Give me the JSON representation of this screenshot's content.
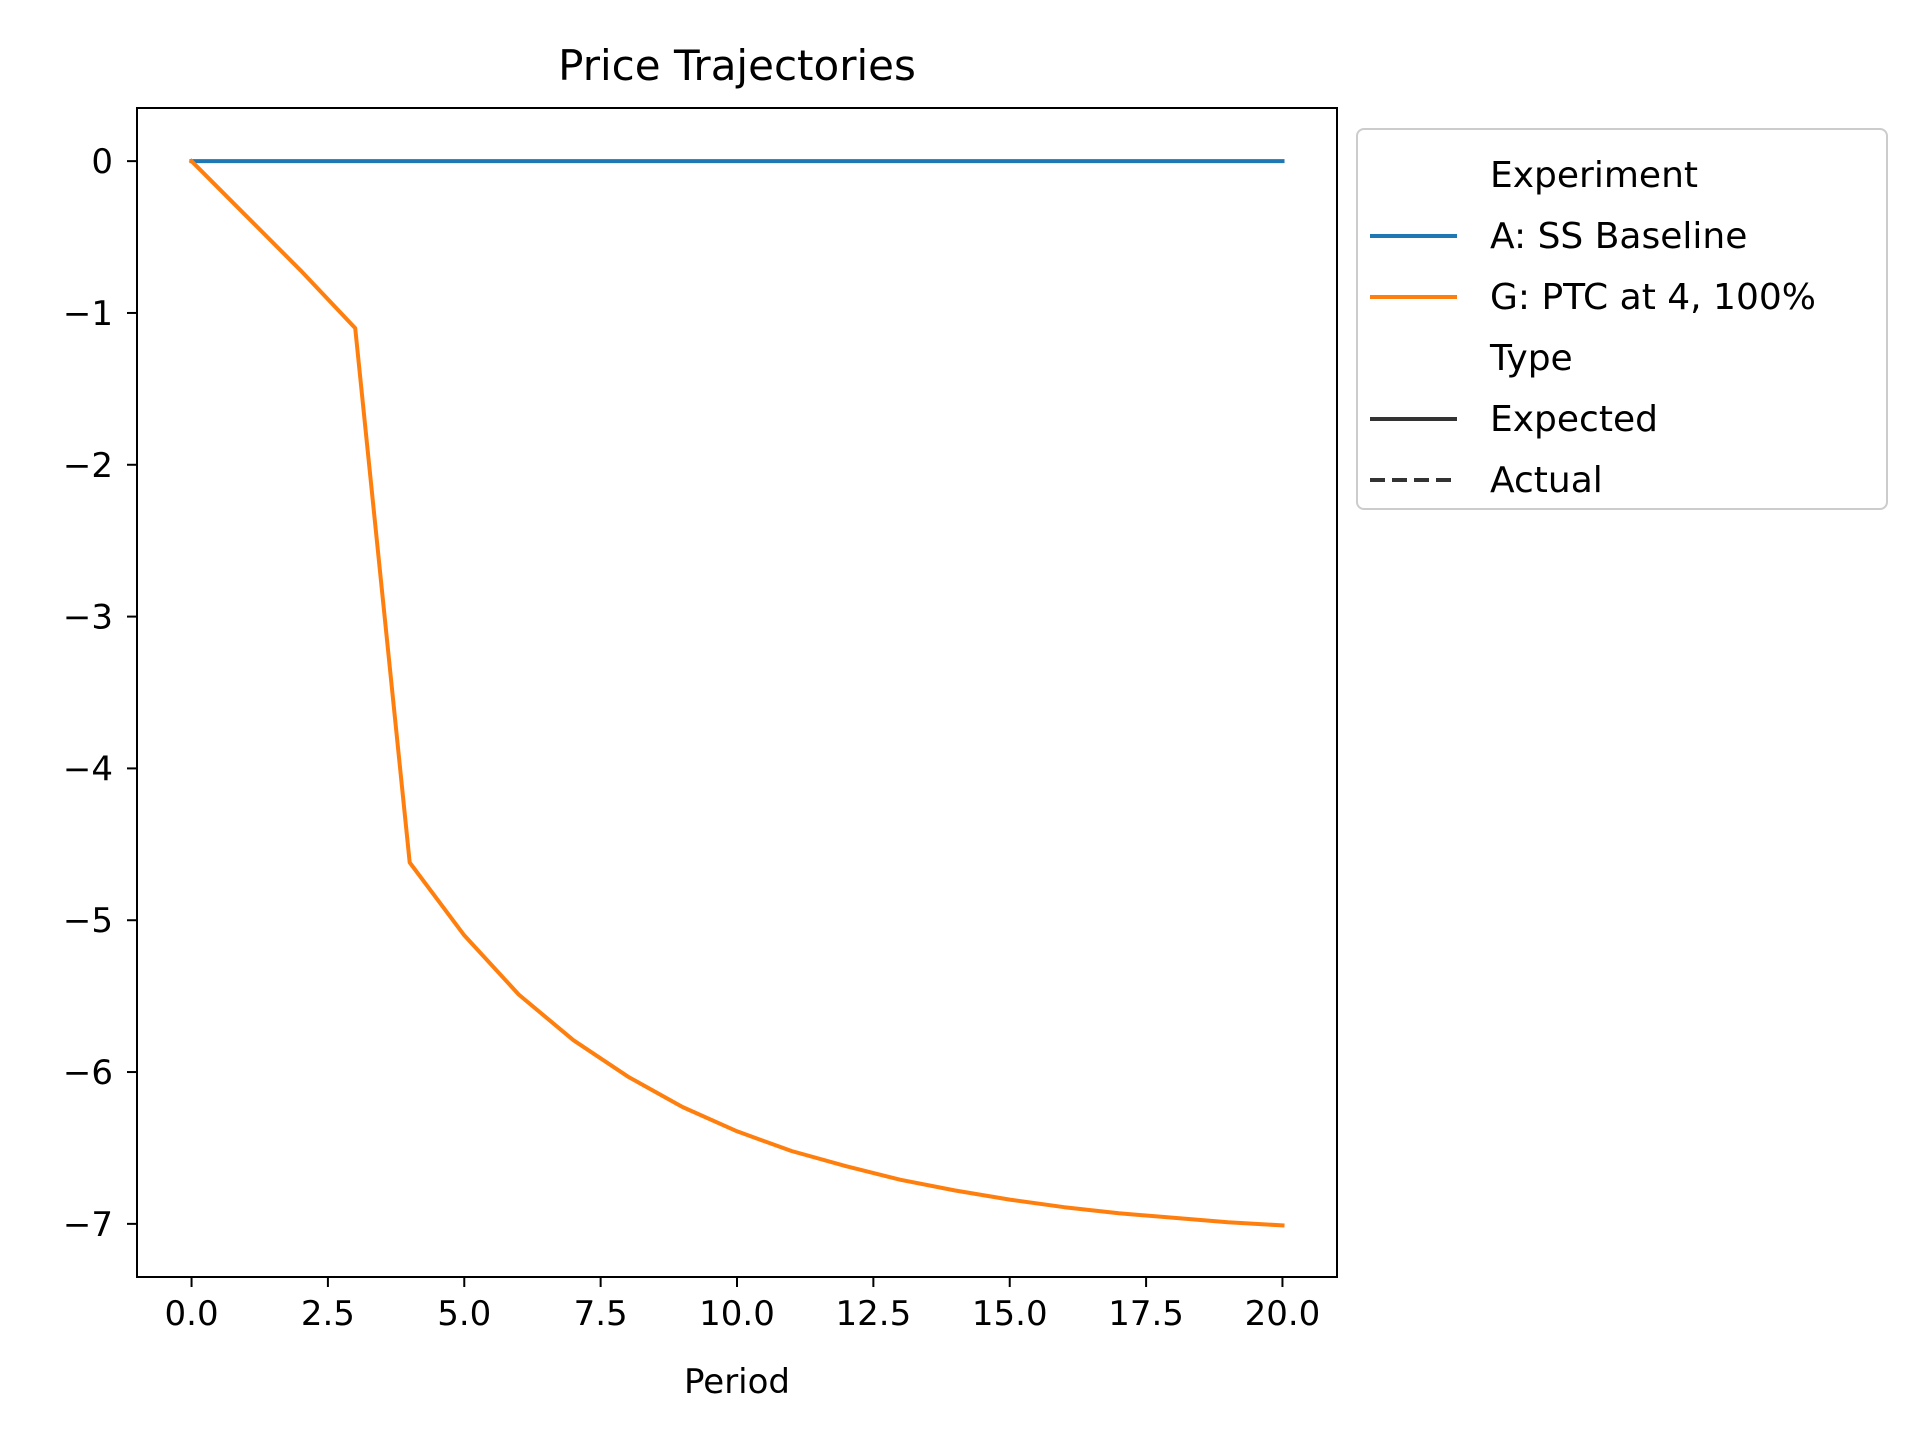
{
  "chart_data": {
    "type": "line",
    "title": "Price Trajectories",
    "xlabel": "Period",
    "ylabel": "",
    "xlim": [
      -1,
      21
    ],
    "ylim": [
      -7.35,
      0.35
    ],
    "xticks": [
      0,
      2.5,
      5,
      7.5,
      10,
      12.5,
      15,
      17.5,
      20
    ],
    "xtick_labels": [
      "0.0",
      "2.5",
      "5.0",
      "7.5",
      "10.0",
      "12.5",
      "15.0",
      "17.5",
      "20.0"
    ],
    "yticks": [
      0,
      -1,
      -2,
      -3,
      -4,
      -5,
      -6,
      -7
    ],
    "ytick_labels": [
      "0",
      "−1",
      "−2",
      "−3",
      "−4",
      "−5",
      "−6",
      "−7"
    ],
    "grid": false,
    "legend": {
      "placement": "outside-upper-right",
      "sections": [
        {
          "title": "Experiment",
          "entries": [
            {
              "label": "A: SS Baseline",
              "color": "#1f77b4",
              "style": "solid"
            },
            {
              "label": "G: PTC at 4, 100%",
              "color": "#ff7f0e",
              "style": "solid"
            }
          ]
        },
        {
          "title": "Type",
          "entries": [
            {
              "label": "Expected",
              "color": "#333333",
              "style": "solid"
            },
            {
              "label": "Actual",
              "color": "#333333",
              "style": "dashed"
            }
          ]
        }
      ]
    },
    "x": [
      0,
      1,
      2,
      3,
      4,
      5,
      6,
      7,
      8,
      9,
      10,
      11,
      12,
      13,
      14,
      15,
      16,
      17,
      18,
      19,
      20
    ],
    "series": [
      {
        "name": "A: SS Baseline",
        "color": "#1f77b4",
        "style": "solid",
        "values": [
          0,
          0,
          0,
          0,
          0,
          0,
          0,
          0,
          0,
          0,
          0,
          0,
          0,
          0,
          0,
          0,
          0,
          0,
          0,
          0,
          0
        ]
      },
      {
        "name": "G: PTC at 4, 100%",
        "color": "#ff7f0e",
        "style": "solid",
        "values": [
          0,
          -0.36,
          -0.72,
          -1.1,
          -4.62,
          -5.1,
          -5.49,
          -5.79,
          -6.03,
          -6.23,
          -6.39,
          -6.52,
          -6.62,
          -6.71,
          -6.78,
          -6.84,
          -6.89,
          -6.93,
          -6.96,
          -6.99,
          -7.01
        ]
      }
    ]
  }
}
